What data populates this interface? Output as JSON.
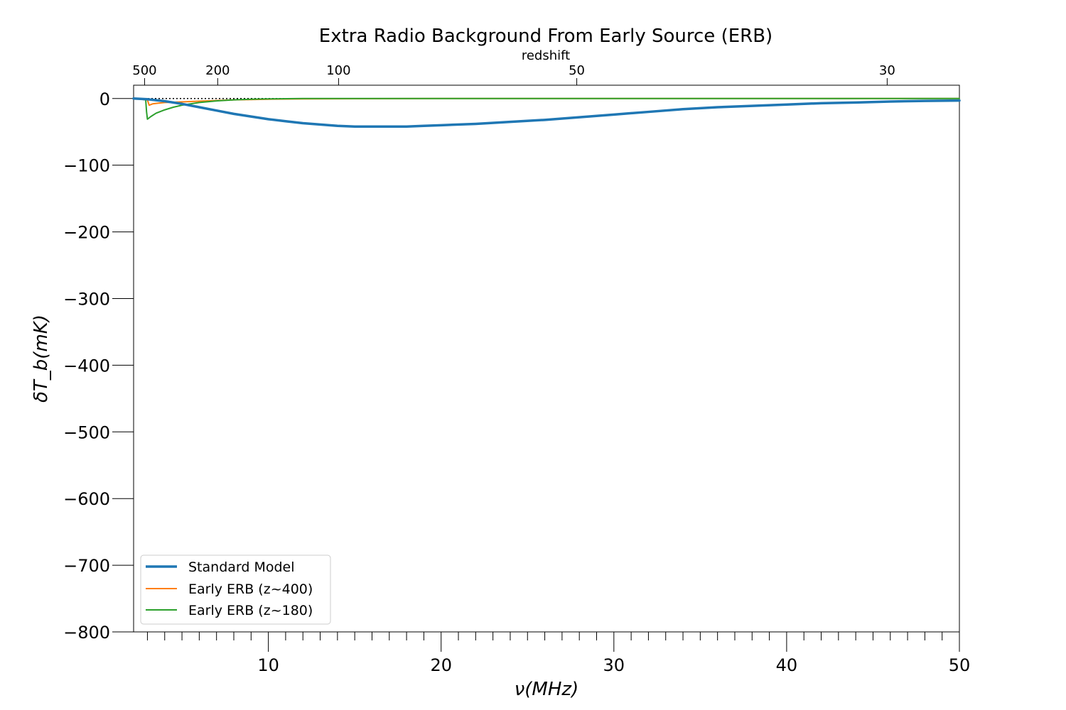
{
  "chart_data": {
    "type": "line",
    "title": "Extra Radio Background From Early Source (ERB)",
    "xlabel": "ν(MHz)",
    "ylabel": "δT_b(mK)",
    "top_axis_label": "redshift",
    "xlim": [
      2.2,
      50
    ],
    "ylim": [
      -800,
      20
    ],
    "x_ticks": [
      10,
      20,
      30,
      40,
      50
    ],
    "y_ticks": [
      0,
      -100,
      -200,
      -300,
      -400,
      -500,
      -600,
      -700,
      -800
    ],
    "y_tick_labels": [
      "0",
      "−100",
      "−200",
      "−300",
      "−400",
      "−500",
      "−600",
      "−700",
      "−800"
    ],
    "redshift_ticks": [
      500,
      200,
      100,
      50,
      30
    ],
    "reference_line": 0,
    "legend_position": "lower-left",
    "grid": false,
    "series": [
      {
        "name": "Standard Model",
        "color": "#1f77b4",
        "x": [
          2.2,
          3,
          4,
          5,
          6,
          7,
          8,
          9,
          10,
          11,
          12,
          13,
          14,
          15,
          16,
          17,
          18,
          19,
          20,
          22,
          24,
          26,
          28,
          30,
          32,
          34,
          36,
          38,
          40,
          42,
          44,
          46,
          48,
          50
        ],
        "y": [
          0,
          -1,
          -4,
          -8,
          -13,
          -18,
          -23,
          -27,
          -31,
          -34,
          -37,
          -39,
          -41,
          -42,
          -42,
          -42,
          -42,
          -41,
          -40,
          -38,
          -35,
          -32,
          -28,
          -24,
          -20,
          -16,
          -13,
          -11,
          -9,
          -7,
          -6,
          -4.5,
          -3.5,
          -3
        ]
      },
      {
        "name": "Early ERB (z~400)",
        "color": "#ff7f0e",
        "x": [
          2.2,
          2.6,
          3.0,
          3.1,
          3.3,
          3.6,
          4.0,
          4.5,
          5,
          6,
          7,
          8,
          9,
          10,
          12,
          15,
          20,
          30,
          50
        ],
        "y": [
          0,
          -1,
          -2,
          -10,
          -8,
          -7,
          -6,
          -5.5,
          -5,
          -4,
          -3,
          -2,
          -1.5,
          -1,
          -0.5,
          -0.2,
          0,
          0,
          0
        ]
      },
      {
        "name": "Early ERB (z~180)",
        "color": "#2ca02c",
        "x": [
          2.2,
          2.5,
          2.9,
          2.95,
          3.0,
          3.2,
          3.5,
          4.0,
          4.5,
          5,
          5.5,
          6,
          7,
          8,
          9,
          10,
          12,
          15,
          20,
          30,
          50
        ],
        "y": [
          0,
          -0.5,
          -2,
          -20,
          -31,
          -27,
          -22,
          -17,
          -13,
          -10,
          -8,
          -6,
          -3.5,
          -2,
          -1,
          -0.5,
          0,
          0,
          0,
          0,
          0
        ]
      }
    ]
  }
}
